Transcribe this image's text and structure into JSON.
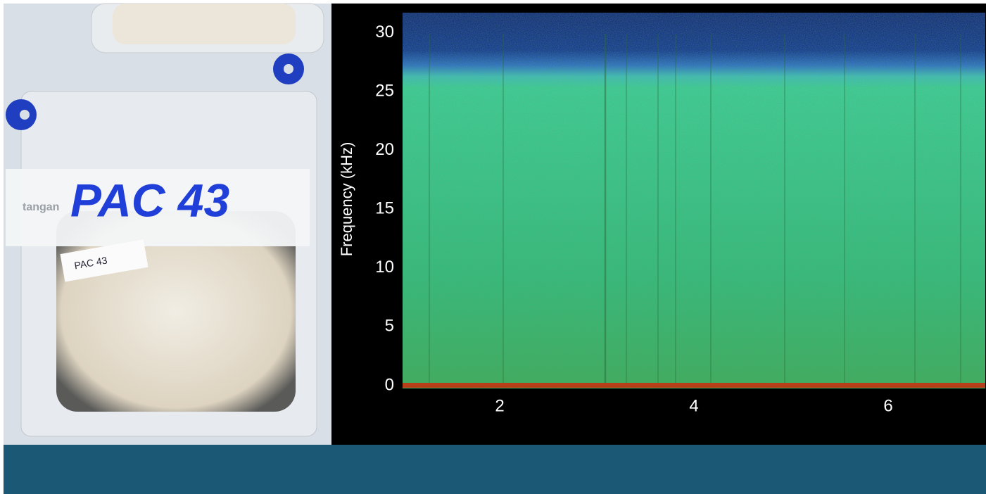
{
  "photo": {
    "marker_text": "PAC 43",
    "label_text": "PAC 43",
    "bag_text": "tangan"
  },
  "chart_data": {
    "type": "spectrogram",
    "ylabel": "Frequency (kHz)",
    "xlim": [
      1,
      7
    ],
    "xticks": [
      2,
      4,
      6
    ],
    "ylim": [
      0,
      31.7
    ],
    "yticks": [
      0,
      5,
      10,
      15,
      20,
      25,
      30
    ]
  }
}
